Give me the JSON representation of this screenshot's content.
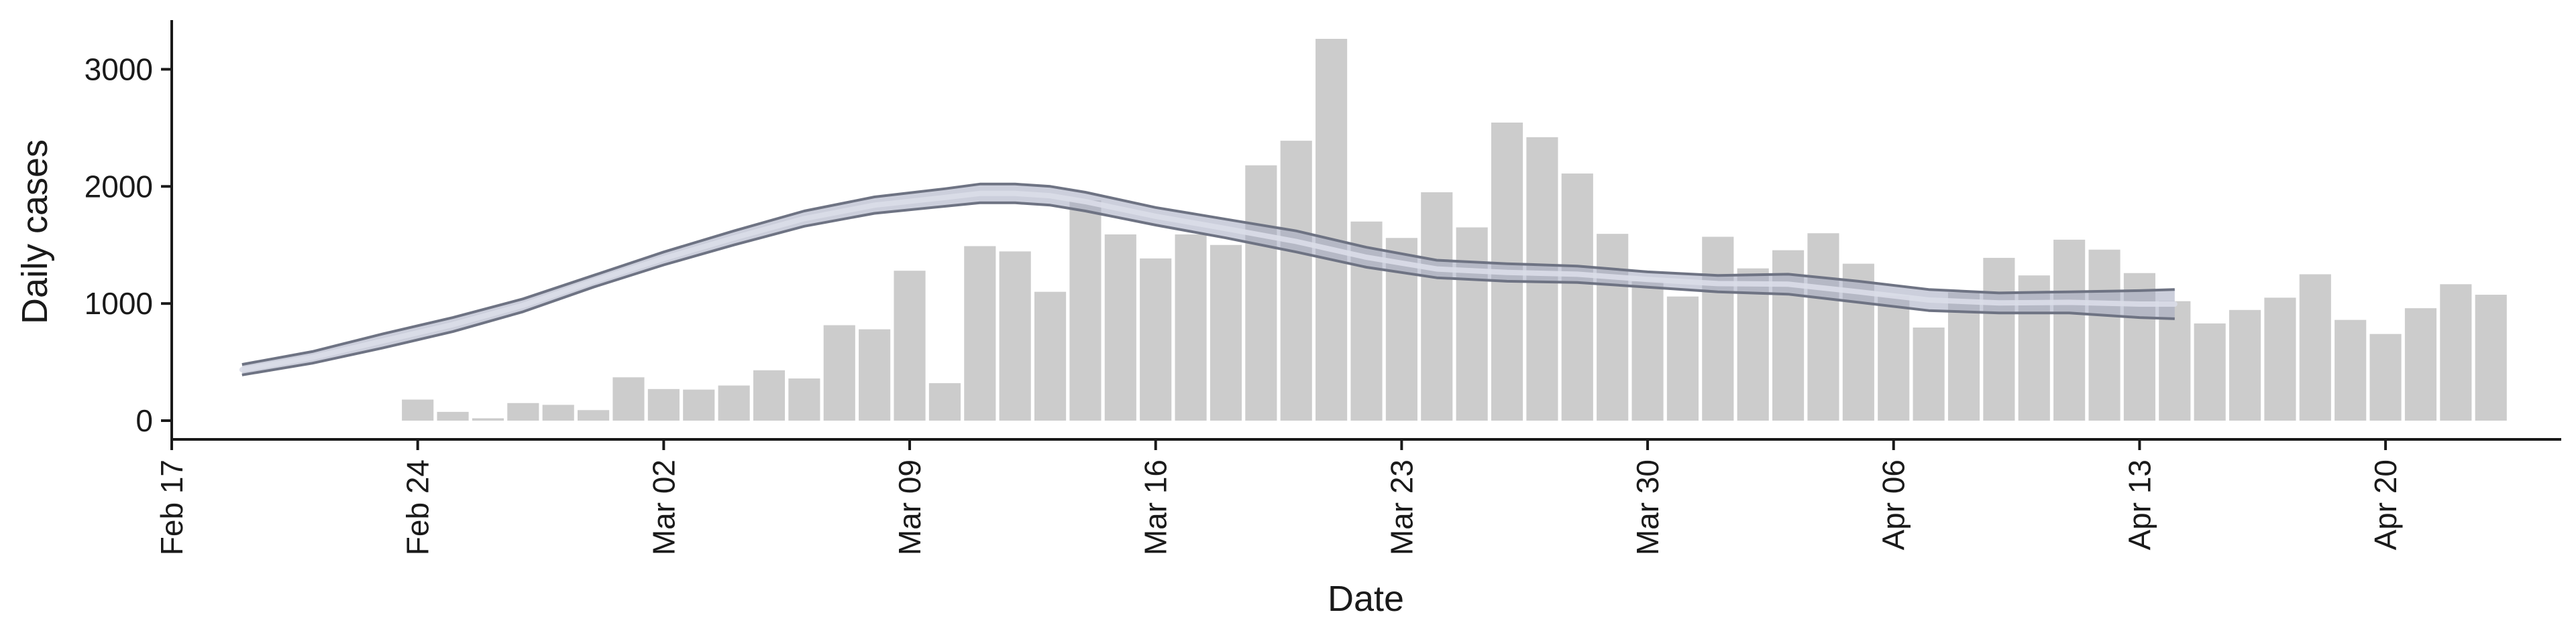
{
  "chart_data": {
    "type": "bar",
    "title": "",
    "xlabel": "Date",
    "ylabel": "Daily cases",
    "ylim": [
      -160,
      3420
    ],
    "xlim": [
      "2020-02-17",
      "2020-04-25"
    ],
    "y_ticks": [
      0,
      1000,
      2000,
      3000
    ],
    "x_ticks": [
      {
        "date": "2020-02-17",
        "label": "Feb 17"
      },
      {
        "date": "2020-02-24",
        "label": "Feb 24"
      },
      {
        "date": "2020-03-02",
        "label": "Mar 02"
      },
      {
        "date": "2020-03-09",
        "label": "Mar 09"
      },
      {
        "date": "2020-03-16",
        "label": "Mar 16"
      },
      {
        "date": "2020-03-23",
        "label": "Mar 23"
      },
      {
        "date": "2020-03-30",
        "label": "Mar 30"
      },
      {
        "date": "2020-04-06",
        "label": "Apr 06"
      },
      {
        "date": "2020-04-13",
        "label": "Apr 13"
      },
      {
        "date": "2020-04-20",
        "label": "Apr 20"
      }
    ],
    "grid": false,
    "legend": "none",
    "colors": {
      "bars": "#cccccc",
      "band_outer": "#6e7383",
      "band_fill": "#a3a8c0",
      "band_center": "#dadde8",
      "axis": "#1a1a1a"
    },
    "bars": {
      "x": [
        "2020-02-24",
        "2020-02-25",
        "2020-02-26",
        "2020-02-27",
        "2020-02-28",
        "2020-02-29",
        "2020-03-01",
        "2020-03-02",
        "2020-03-03",
        "2020-03-04",
        "2020-03-05",
        "2020-03-06",
        "2020-03-07",
        "2020-03-08",
        "2020-03-09",
        "2020-03-10",
        "2020-03-11",
        "2020-03-12",
        "2020-03-13",
        "2020-03-14",
        "2020-03-15",
        "2020-03-16",
        "2020-03-17",
        "2020-03-18",
        "2020-03-19",
        "2020-03-20",
        "2020-03-21",
        "2020-03-22",
        "2020-03-23",
        "2020-03-24",
        "2020-03-25",
        "2020-03-26",
        "2020-03-27",
        "2020-03-28",
        "2020-03-29",
        "2020-03-30",
        "2020-03-31",
        "2020-04-01",
        "2020-04-02",
        "2020-04-03",
        "2020-04-04",
        "2020-04-05",
        "2020-04-06",
        "2020-04-07",
        "2020-04-08",
        "2020-04-09",
        "2020-04-10",
        "2020-04-11",
        "2020-04-12",
        "2020-04-13",
        "2020-04-14",
        "2020-04-15",
        "2020-04-16",
        "2020-04-17",
        "2020-04-18",
        "2020-04-19",
        "2020-04-20",
        "2020-04-21",
        "2020-04-22",
        "2020-04-23"
      ],
      "values": [
        180,
        75,
        20,
        150,
        135,
        90,
        370,
        270,
        265,
        300,
        430,
        360,
        815,
        780,
        1280,
        320,
        1490,
        1445,
        1100,
        1880,
        1590,
        1385,
        1590,
        1500,
        2180,
        2390,
        3260,
        1700,
        1560,
        1950,
        1650,
        2545,
        2420,
        2110,
        1595,
        1190,
        1060,
        1570,
        1300,
        1455,
        1600,
        1340,
        1065,
        795,
        1095,
        1390,
        1240,
        1545,
        1460,
        1260,
        1020,
        830,
        945,
        1050,
        1250,
        860,
        740,
        960,
        1165,
        1075
      ]
    },
    "model_band": {
      "x": [
        "2020-02-19",
        "2020-02-21",
        "2020-02-23",
        "2020-02-25",
        "2020-02-27",
        "2020-02-29",
        "2020-03-02",
        "2020-03-04",
        "2020-03-06",
        "2020-03-08",
        "2020-03-10",
        "2020-03-11",
        "2020-03-12",
        "2020-03-13",
        "2020-03-14",
        "2020-03-16",
        "2020-03-18",
        "2020-03-20",
        "2020-03-22",
        "2020-03-24",
        "2020-03-26",
        "2020-03-28",
        "2020-03-30",
        "2020-04-01",
        "2020-04-03",
        "2020-04-05",
        "2020-04-07",
        "2020-04-09",
        "2020-04-11",
        "2020-04-13",
        "2020-04-14"
      ],
      "upper": [
        480,
        590,
        740,
        880,
        1040,
        1240,
        1440,
        1620,
        1790,
        1910,
        1980,
        2020,
        2020,
        2000,
        1950,
        1820,
        1720,
        1620,
        1480,
        1370,
        1340,
        1320,
        1270,
        1240,
        1250,
        1190,
        1120,
        1090,
        1100,
        1110,
        1120
      ],
      "lower": [
        390,
        490,
        620,
        760,
        930,
        1140,
        1330,
        1500,
        1660,
        1770,
        1830,
        1860,
        1860,
        1840,
        1790,
        1670,
        1560,
        1440,
        1310,
        1220,
        1190,
        1180,
        1140,
        1100,
        1080,
        1010,
        940,
        920,
        920,
        880,
        870
      ]
    }
  }
}
